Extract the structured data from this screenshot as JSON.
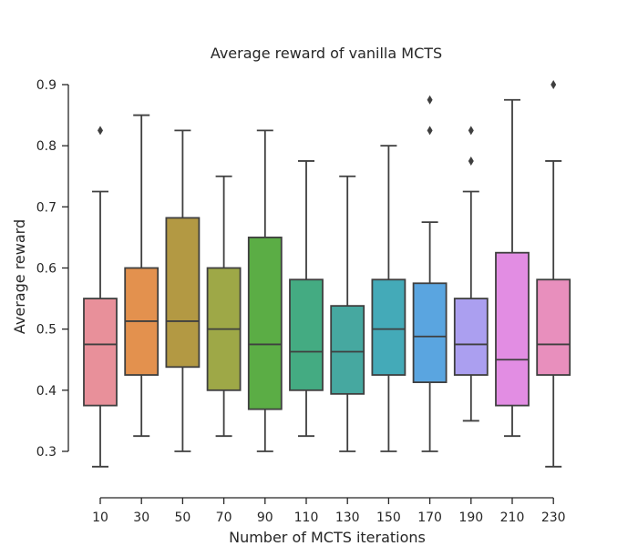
{
  "chart_data": {
    "type": "box",
    "title": "Average reward of vanilla MCTS",
    "xlabel": "Number of MCTS iterations",
    "ylabel": "Average reward",
    "ylim": [
      0.22,
      0.92
    ],
    "yticks": [
      0.3,
      0.4,
      0.5,
      0.6,
      0.7,
      0.8,
      0.9
    ],
    "grid": false,
    "categories": [
      "10",
      "30",
      "50",
      "70",
      "90",
      "110",
      "130",
      "150",
      "170",
      "190",
      "210",
      "230"
    ],
    "boxes": [
      {
        "category": "10",
        "whisker_low": 0.275,
        "q1": 0.375,
        "median": 0.475,
        "q3": 0.55,
        "whisker_high": 0.725,
        "outliers": [
          0.825
        ],
        "color": "#e8909a"
      },
      {
        "category": "30",
        "whisker_low": 0.325,
        "q1": 0.425,
        "median": 0.513,
        "q3": 0.6,
        "whisker_high": 0.85,
        "outliers": [],
        "color": "#e3914e"
      },
      {
        "category": "50",
        "whisker_low": 0.3,
        "q1": 0.438,
        "median": 0.513,
        "q3": 0.682,
        "whisker_high": 0.825,
        "outliers": [],
        "color": "#b39943"
      },
      {
        "category": "70",
        "whisker_low": 0.325,
        "q1": 0.4,
        "median": 0.5,
        "q3": 0.6,
        "whisker_high": 0.75,
        "outliers": [],
        "color": "#9ea847"
      },
      {
        "category": "90",
        "whisker_low": 0.3,
        "q1": 0.369,
        "median": 0.475,
        "q3": 0.65,
        "whisker_high": 0.825,
        "outliers": [],
        "color": "#5bad45"
      },
      {
        "category": "110",
        "whisker_low": 0.325,
        "q1": 0.4,
        "median": 0.463,
        "q3": 0.581,
        "whisker_high": 0.775,
        "outliers": [],
        "color": "#44ab82"
      },
      {
        "category": "130",
        "whisker_low": 0.3,
        "q1": 0.394,
        "median": 0.463,
        "q3": 0.538,
        "whisker_high": 0.75,
        "outliers": [],
        "color": "#46a8a0"
      },
      {
        "category": "150",
        "whisker_low": 0.3,
        "q1": 0.425,
        "median": 0.5,
        "q3": 0.581,
        "whisker_high": 0.8,
        "outliers": [],
        "color": "#44aab8"
      },
      {
        "category": "170",
        "whisker_low": 0.3,
        "q1": 0.413,
        "median": 0.488,
        "q3": 0.575,
        "whisker_high": 0.675,
        "outliers": [
          0.825,
          0.875
        ],
        "color": "#5aa5e0"
      },
      {
        "category": "190",
        "whisker_low": 0.35,
        "q1": 0.425,
        "median": 0.475,
        "q3": 0.55,
        "whisker_high": 0.725,
        "outliers": [
          0.775,
          0.825
        ],
        "color": "#ab9ff0"
      },
      {
        "category": "210",
        "whisker_low": 0.325,
        "q1": 0.375,
        "median": 0.45,
        "q3": 0.625,
        "whisker_high": 0.875,
        "outliers": [],
        "color": "#e28de3"
      },
      {
        "category": "230",
        "whisker_low": 0.275,
        "q1": 0.425,
        "median": 0.475,
        "q3": 0.581,
        "whisker_high": 0.775,
        "outliers": [
          0.9
        ],
        "color": "#e88fbd"
      }
    ]
  }
}
